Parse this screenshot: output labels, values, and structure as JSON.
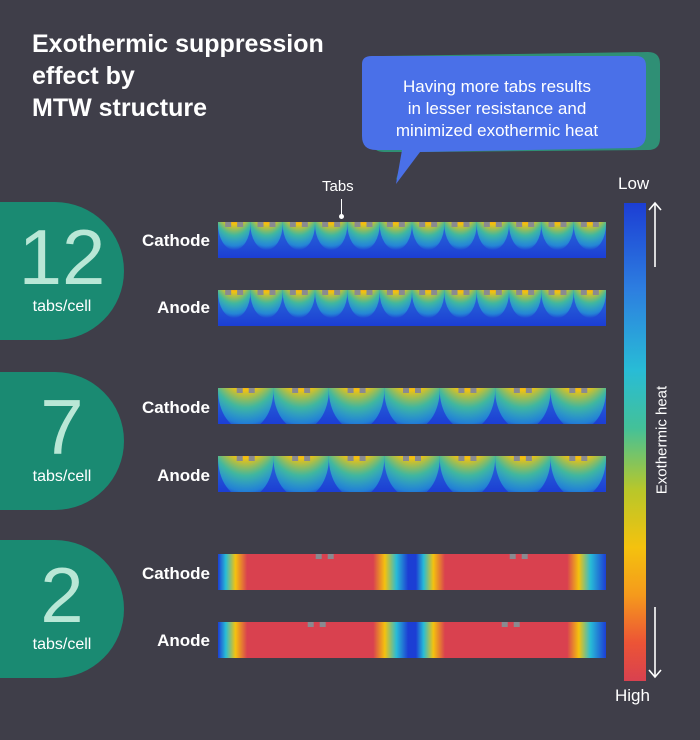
{
  "title": "Exothermic suppression\neffect by\nMTW structure",
  "callout": "Having more tabs results\nin lesser resistance and\nminimized exothermic heat",
  "tabs_label": "Tabs",
  "scale": {
    "low": "Low",
    "high": "High",
    "title": "Exothermic heat",
    "colors": [
      "#1c3ed4",
      "#28bcd6",
      "#f4c20e",
      "#d9414f"
    ]
  },
  "groups": [
    {
      "count": "12",
      "unit": "tabs/cell",
      "rows": [
        {
          "label": "Cathode",
          "pattern": "spots"
        },
        {
          "label": "Anode",
          "pattern": "spots"
        }
      ]
    },
    {
      "count": "7",
      "unit": "tabs/cell",
      "rows": [
        {
          "label": "Cathode",
          "pattern": "spots"
        },
        {
          "label": "Anode",
          "pattern": "spots"
        }
      ]
    },
    {
      "count": "2",
      "unit": "tabs/cell",
      "rows": [
        {
          "label": "Cathode",
          "pattern": "bands"
        },
        {
          "label": "Anode",
          "pattern": "bands"
        }
      ]
    }
  ],
  "colors": {
    "background": "#3f3e49",
    "badge": "#1a8a72",
    "callout": "#4a70e8",
    "callout_shadow": "#2f8f75",
    "hot": "#d9414f",
    "cold": "#1c3ed4"
  }
}
